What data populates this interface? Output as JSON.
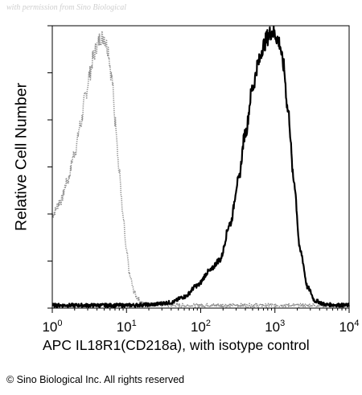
{
  "watermark": "with permission from Sino Biological",
  "copyright": "© Sino Biological Inc. All rights reserved",
  "chart_data": {
    "type": "line",
    "title": "",
    "xlabel": "APC IL18R1(CD218a), with isotype control",
    "ylabel": "Relative Cell Number",
    "x_scale": "log",
    "xlim": [
      1,
      10000
    ],
    "ylim": [
      0,
      1
    ],
    "x_ticks": [
      {
        "base": "10",
        "exp": "0",
        "value": 1
      },
      {
        "base": "10",
        "exp": "1",
        "value": 10
      },
      {
        "base": "10",
        "exp": "2",
        "value": 100
      },
      {
        "base": "10",
        "exp": "3",
        "value": 1000
      },
      {
        "base": "10",
        "exp": "4",
        "value": 10000
      }
    ],
    "grid": false,
    "legend": "none",
    "series": [
      {
        "role": "isotype control",
        "style": "dotted",
        "color": "#8a8a8a",
        "x": [
          1.0,
          1.3,
          1.6,
          2.0,
          2.4,
          2.8,
          3.2,
          3.6,
          4.0,
          4.5,
          5.0,
          5.6,
          6.3,
          7.1,
          8.0,
          9.0,
          10.0,
          11.2,
          12.6,
          14.0,
          16.0,
          18.0,
          25.0,
          40.0,
          100.0,
          1000.0,
          10000.0
        ],
        "y": [
          0.33,
          0.38,
          0.45,
          0.55,
          0.65,
          0.75,
          0.83,
          0.89,
          0.93,
          0.96,
          0.96,
          0.92,
          0.82,
          0.66,
          0.48,
          0.32,
          0.2,
          0.11,
          0.06,
          0.035,
          0.02,
          0.015,
          0.012,
          0.01,
          0.01,
          0.01,
          0.01
        ]
      },
      {
        "role": "IL18R1 (CD218a) stained",
        "style": "solid",
        "color": "#000000",
        "x": [
          1.0,
          10.0,
          20.0,
          40.0,
          60.0,
          90.0,
          130.0,
          180.0,
          250.0,
          320.0,
          400.0,
          500.0,
          600.0,
          700.0,
          800.0,
          900.0,
          1000.0,
          1150.0,
          1300.0,
          1500.0,
          1800.0,
          2200.0,
          2800.0,
          3500.0,
          5000.0,
          10000.0
        ],
        "y": [
          0.01,
          0.01,
          0.012,
          0.02,
          0.04,
          0.08,
          0.13,
          0.17,
          0.3,
          0.45,
          0.62,
          0.78,
          0.87,
          0.93,
          0.96,
          0.98,
          0.97,
          0.94,
          0.86,
          0.7,
          0.45,
          0.2,
          0.07,
          0.025,
          0.012,
          0.01
        ]
      }
    ]
  }
}
